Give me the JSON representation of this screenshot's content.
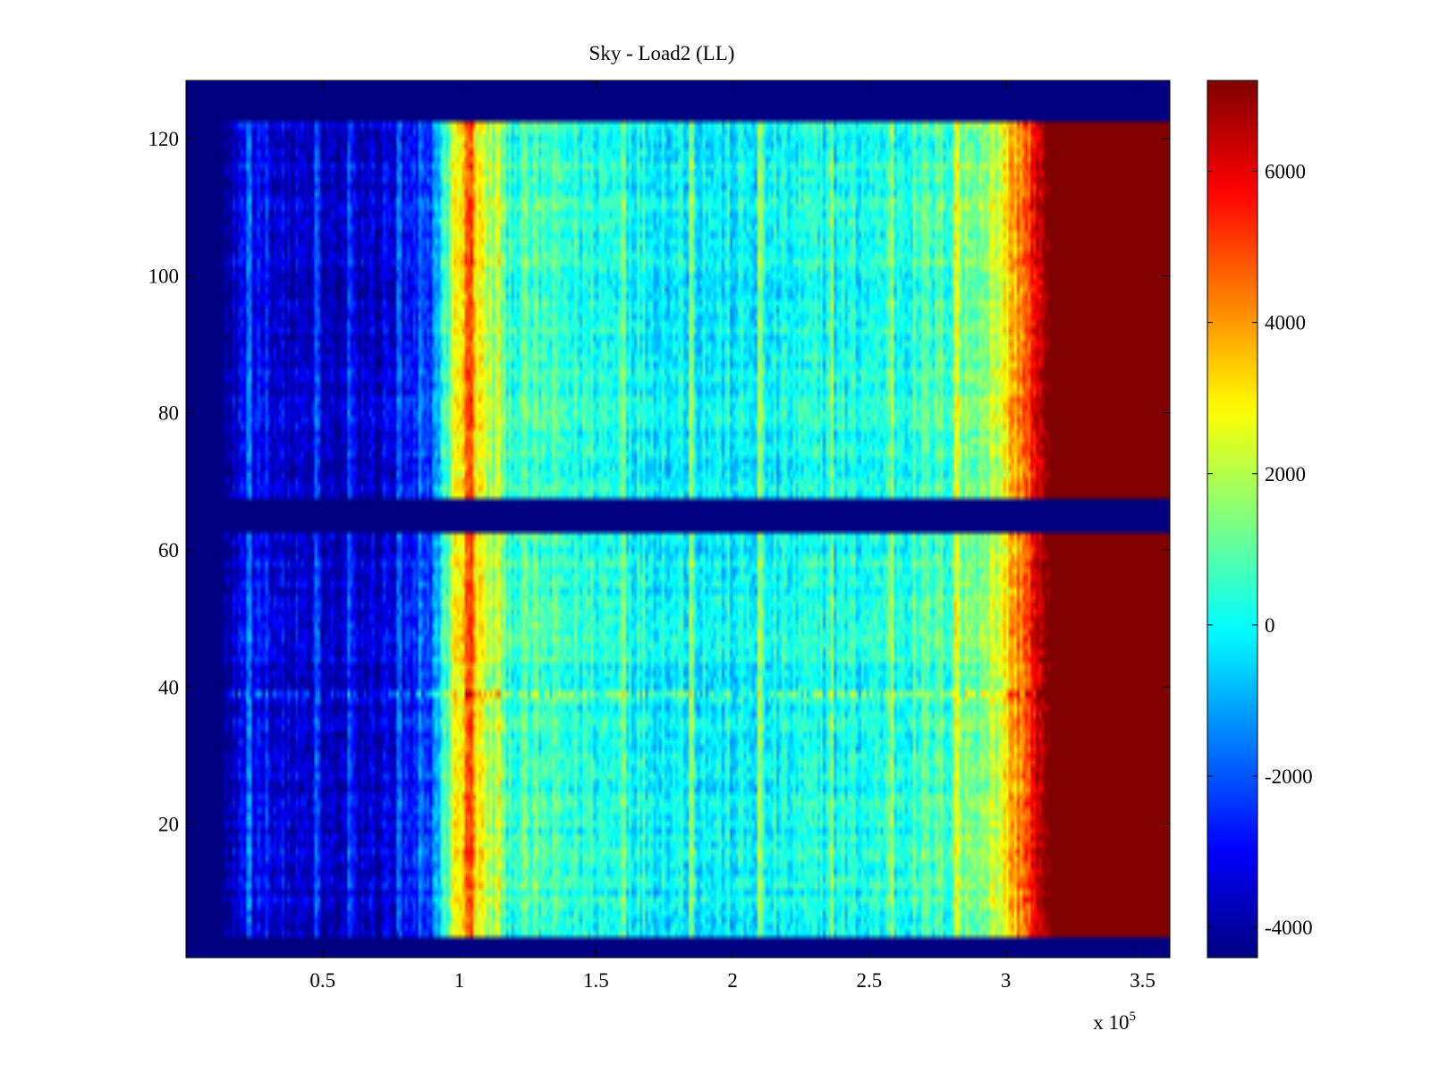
{
  "chart_data": {
    "type": "heatmap",
    "title": "Sky - Load2 (LL)",
    "xlabel": "",
    "ylabel": "",
    "x_exponent_label": {
      "base": "x 10",
      "exponent": "5"
    },
    "xlim": [
      0,
      3.6
    ],
    "ylim": [
      0.5,
      128.5
    ],
    "x_ticks": [
      0.5,
      1,
      1.5,
      2,
      2.5,
      3,
      3.5
    ],
    "x_tick_labels": [
      "0.5",
      "1",
      "1.5",
      "2",
      "2.5",
      "3",
      "3.5"
    ],
    "y_ticks": [
      20,
      40,
      60,
      80,
      100,
      120
    ],
    "y_tick_labels": [
      "20",
      "40",
      "60",
      "80",
      "100",
      "120"
    ],
    "colorbar": {
      "colormap": "jet",
      "clim": [
        -4400,
        7200
      ],
      "ticks": [
        -4000,
        -2000,
        0,
        2000,
        4000,
        6000
      ],
      "tick_labels": [
        "-4000",
        "-2000",
        "0",
        "2000",
        "4000",
        "6000"
      ]
    },
    "background_value": -4400,
    "data_blocks": [
      {
        "y_start": 4,
        "y_end": 62
      },
      {
        "y_start": 68,
        "y_end": 122
      }
    ],
    "x_profile": [
      {
        "x": 0.0,
        "v": -4400
      },
      {
        "x": 0.12,
        "v": -4400
      },
      {
        "x": 0.2,
        "v": -3600
      },
      {
        "x": 0.28,
        "v": -2600
      },
      {
        "x": 0.35,
        "v": -3500
      },
      {
        "x": 0.5,
        "v": -3800
      },
      {
        "x": 0.7,
        "v": -3500
      },
      {
        "x": 0.88,
        "v": -2800
      },
      {
        "x": 0.94,
        "v": 200
      },
      {
        "x": 0.98,
        "v": 2500
      },
      {
        "x": 1.03,
        "v": 4300
      },
      {
        "x": 1.08,
        "v": 2600
      },
      {
        "x": 1.15,
        "v": 800
      },
      {
        "x": 1.5,
        "v": 300
      },
      {
        "x": 2.0,
        "v": -200
      },
      {
        "x": 2.5,
        "v": 200
      },
      {
        "x": 2.8,
        "v": 800
      },
      {
        "x": 2.96,
        "v": 2000
      },
      {
        "x": 3.02,
        "v": 3600
      },
      {
        "x": 3.08,
        "v": 5000
      },
      {
        "x": 3.12,
        "v": 6200
      },
      {
        "x": 3.16,
        "v": 7200
      },
      {
        "x": 3.6,
        "v": 7200
      }
    ],
    "stripe_features": [
      {
        "x": 0.23,
        "delta": 1800
      },
      {
        "x": 0.48,
        "delta": 1600
      },
      {
        "x": 0.6,
        "delta": 1200
      },
      {
        "x": 0.78,
        "delta": 1000
      },
      {
        "x": 0.86,
        "delta": 1000
      },
      {
        "x": 1.04,
        "delta": 900
      },
      {
        "x": 1.14,
        "delta": 1500
      },
      {
        "x": 1.6,
        "delta": 1500
      },
      {
        "x": 1.85,
        "delta": 1800
      },
      {
        "x": 2.1,
        "delta": 1500
      },
      {
        "x": 2.36,
        "delta": 1200
      },
      {
        "x": 2.58,
        "delta": 1200
      },
      {
        "x": 2.82,
        "delta": 1800
      }
    ],
    "row_anomalies": [
      {
        "y": 39,
        "delta": 1500
      }
    ]
  }
}
